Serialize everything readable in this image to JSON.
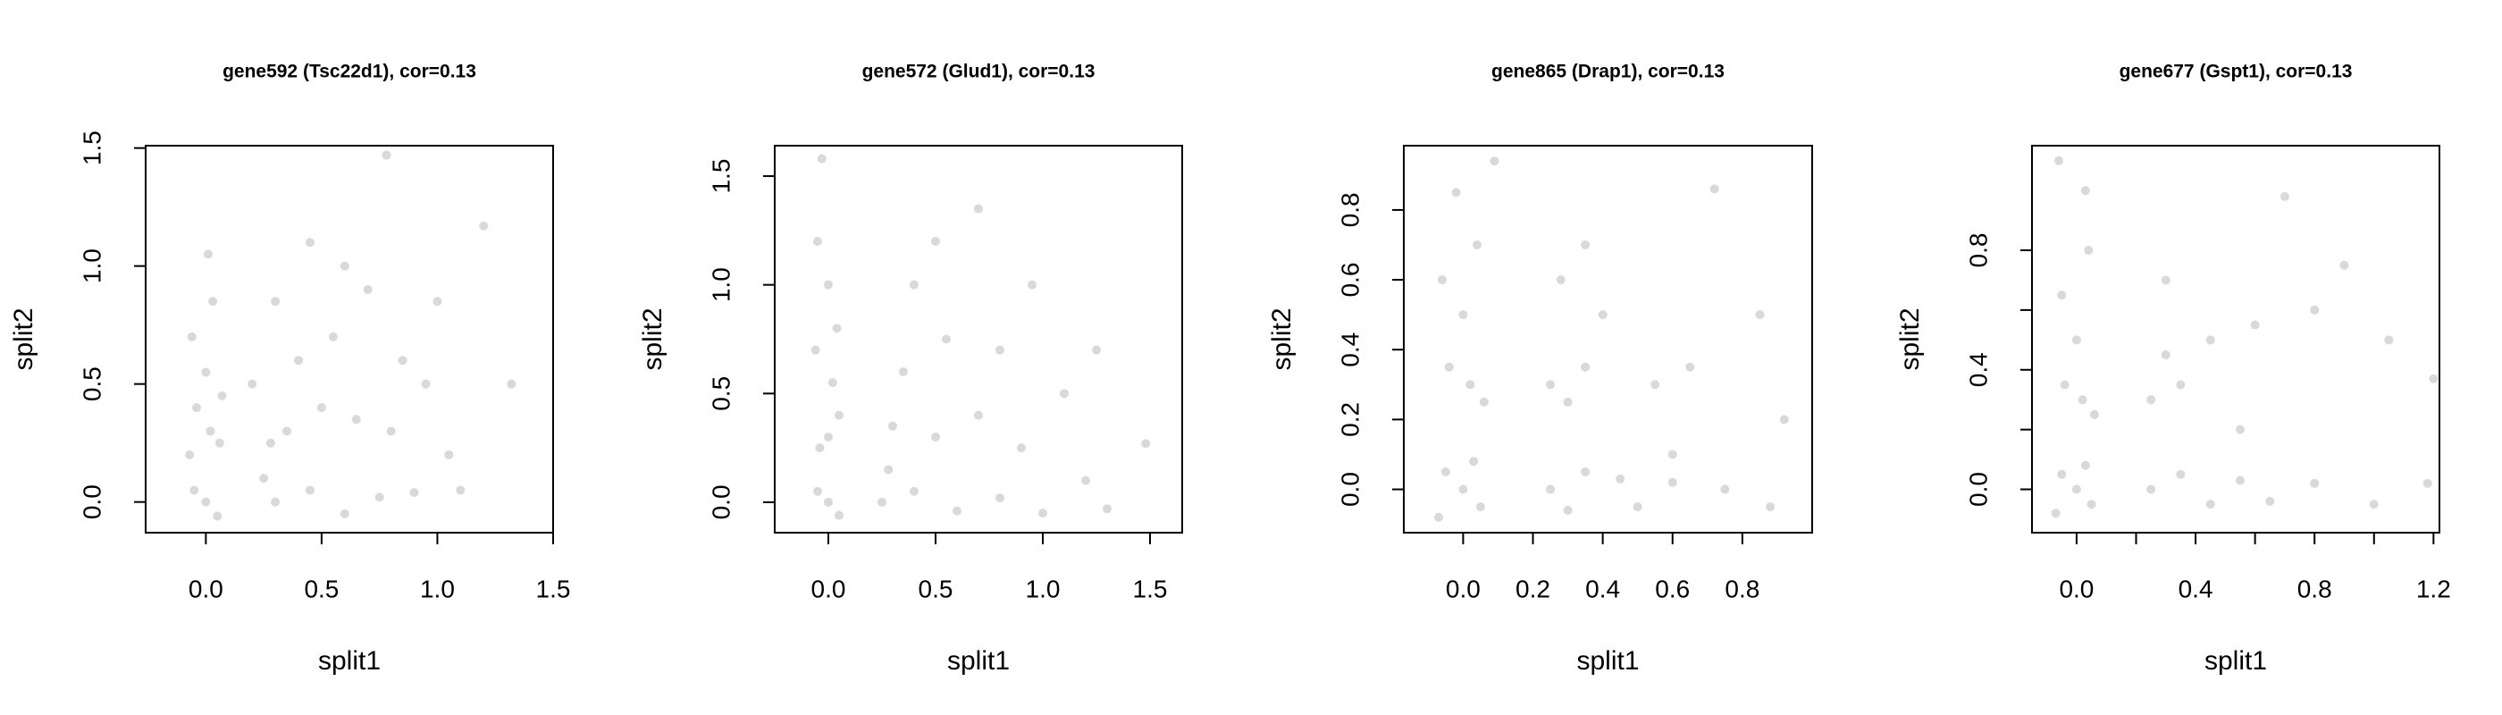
{
  "chart_data": [
    {
      "type": "scatter",
      "title": "gene592 (Tsc22d1), cor=0.13",
      "x_label": "split1",
      "y_label": "split2",
      "color": "#808080",
      "alpha": 0.3,
      "x": [
        0,
        -0.05,
        0.05,
        0.02,
        -0.04,
        0.06,
        0,
        -0.06,
        0.03,
        0.01,
        0.3,
        0.45,
        0.6,
        0.75,
        0.9,
        0.35,
        0.5,
        0.28,
        0.65,
        0.8,
        0.4,
        0.55,
        0.3,
        0.7,
        0.45,
        0.95,
        1.05,
        1.2,
        1.32,
        0.78,
        0.25,
        0.2,
        1.0,
        0.6,
        -0.07,
        0.07,
        0.85,
        1.1
      ],
      "y": [
        0,
        0.05,
        -0.06,
        0.3,
        0.4,
        0.25,
        0.55,
        0.7,
        0.85,
        1.05,
        0,
        0.05,
        -0.05,
        0.02,
        0.04,
        0.3,
        0.4,
        0.25,
        0.35,
        0.3,
        0.6,
        0.7,
        0.85,
        0.9,
        1.1,
        0.5,
        0.2,
        1.17,
        0.5,
        1.47,
        0.1,
        0.5,
        0.85,
        1.0,
        0.2,
        0.45,
        0.6,
        0.05
      ],
      "xlim": [
        -0.26,
        1.5
      ],
      "ylim": [
        -0.13,
        1.51
      ],
      "xticks": [
        {
          "value": 0,
          "label": "0.0"
        },
        0.5,
        {
          "value": 1,
          "label": "1.0"
        },
        1.5
      ],
      "yticks": [
        {
          "value": 0,
          "label": "0.0"
        },
        0.5,
        {
          "value": 1,
          "label": "1.0"
        },
        1.5
      ]
    },
    {
      "type": "scatter",
      "title": "gene572 (Glud1), cor=0.13",
      "x_label": "split1",
      "y_label": "split2",
      "color": "#808080",
      "alpha": 0.3,
      "x": [
        0,
        -0.05,
        0.05,
        0,
        -0.04,
        0.05,
        0.02,
        -0.06,
        0.04,
        0,
        -0.05,
        -0.03,
        0.25,
        0.4,
        0.6,
        0.8,
        1.0,
        1.3,
        0.3,
        0.5,
        0.7,
        0.9,
        0.35,
        0.55,
        0.8,
        0.4,
        0.7,
        0.5,
        1.1,
        1.25,
        1.48,
        0.95,
        0.28,
        1.2
      ],
      "y": [
        0,
        0.05,
        -0.06,
        0.3,
        0.25,
        0.4,
        0.55,
        0.7,
        0.8,
        1.0,
        1.2,
        1.58,
        0,
        0.05,
        -0.04,
        0.02,
        -0.05,
        -0.03,
        0.35,
        0.3,
        0.4,
        0.25,
        0.6,
        0.75,
        0.7,
        1.0,
        1.35,
        1.2,
        0.5,
        0.7,
        0.27,
        1.0,
        0.15,
        0.1
      ],
      "xlim": [
        -0.25,
        1.65
      ],
      "ylim": [
        -0.14,
        1.64
      ],
      "xticks": [
        {
          "value": 0,
          "label": "0.0"
        },
        0.5,
        {
          "value": 1,
          "label": "1.0"
        },
        1.5
      ],
      "yticks": [
        {
          "value": 0,
          "label": "0.0"
        },
        0.5,
        {
          "value": 1,
          "label": "1.0"
        },
        1.5
      ]
    },
    {
      "type": "scatter",
      "title": "gene865 (Drap1), cor=0.13",
      "x_label": "split1",
      "y_label": "split2",
      "color": "#808080",
      "alpha": 0.3,
      "x": [
        0,
        -0.05,
        0.05,
        0.03,
        -0.07,
        0.02,
        -0.04,
        0.06,
        0,
        -0.06,
        0.04,
        -0.02,
        0.25,
        0.35,
        0.3,
        0.45,
        0.5,
        0.6,
        0.75,
        0.88,
        0.25,
        0.35,
        0.3,
        0.4,
        0.28,
        0.35,
        0.55,
        0.65,
        0.72,
        0.85,
        0.92,
        0.6,
        0.09
      ],
      "y": [
        0,
        0.05,
        -0.05,
        0.08,
        -0.08,
        0.3,
        0.35,
        0.25,
        0.5,
        0.6,
        0.7,
        0.85,
        0,
        0.05,
        -0.06,
        0.03,
        -0.05,
        0.02,
        0,
        -0.05,
        0.3,
        0.35,
        0.25,
        0.5,
        0.6,
        0.7,
        0.3,
        0.35,
        0.86,
        0.5,
        0.2,
        0.1,
        0.94
      ],
      "xlim": [
        -0.17,
        1.0
      ],
      "ylim": [
        -0.124,
        0.984
      ],
      "xticks": [
        {
          "value": 0,
          "label": "0.0"
        },
        0.2,
        0.4,
        0.6,
        0.8
      ],
      "yticks": [
        {
          "value": 0,
          "label": "0.0"
        },
        0.2,
        0.4,
        0.6,
        0.8
      ]
    },
    {
      "type": "scatter",
      "title": "gene677 (Gspt1), cor=0.13",
      "x_label": "split1",
      "y_label": "split2",
      "color": "#808080",
      "alpha": 0.3,
      "x": [
        0,
        -0.05,
        0.05,
        0.03,
        -0.07,
        0.02,
        -0.04,
        0.06,
        0,
        -0.05,
        0.04,
        0.03,
        -0.06,
        0.25,
        0.35,
        0.45,
        0.55,
        0.65,
        0.8,
        1.0,
        1.18,
        0.25,
        0.35,
        0.3,
        0.45,
        0.6,
        0.7,
        0.55,
        0.9,
        1.05,
        1.2,
        0.8,
        0.3
      ],
      "y": [
        0,
        0.05,
        -0.05,
        0.08,
        -0.08,
        0.3,
        0.35,
        0.25,
        0.5,
        0.65,
        0.8,
        1.0,
        1.1,
        0,
        0.05,
        -0.05,
        0.03,
        -0.04,
        0.02,
        -0.05,
        0.02,
        0.3,
        0.35,
        0.45,
        0.5,
        0.55,
        0.98,
        0.2,
        0.75,
        0.5,
        0.37,
        0.6,
        0.7
      ],
      "xlim": [
        -0.15,
        1.22
      ],
      "ylim": [
        -0.145,
        1.15
      ],
      "xticks": [
        {
          "value": 0,
          "label": "0.0"
        },
        0.4,
        0.8,
        1.2
      ],
      "xminor_ticks": [
        0.2,
        0.6,
        1.0
      ],
      "yticks": [
        {
          "value": 0,
          "label": "0.0"
        },
        0.4,
        0.8
      ],
      "yminor_ticks": [
        0.2,
        0.6
      ]
    }
  ]
}
